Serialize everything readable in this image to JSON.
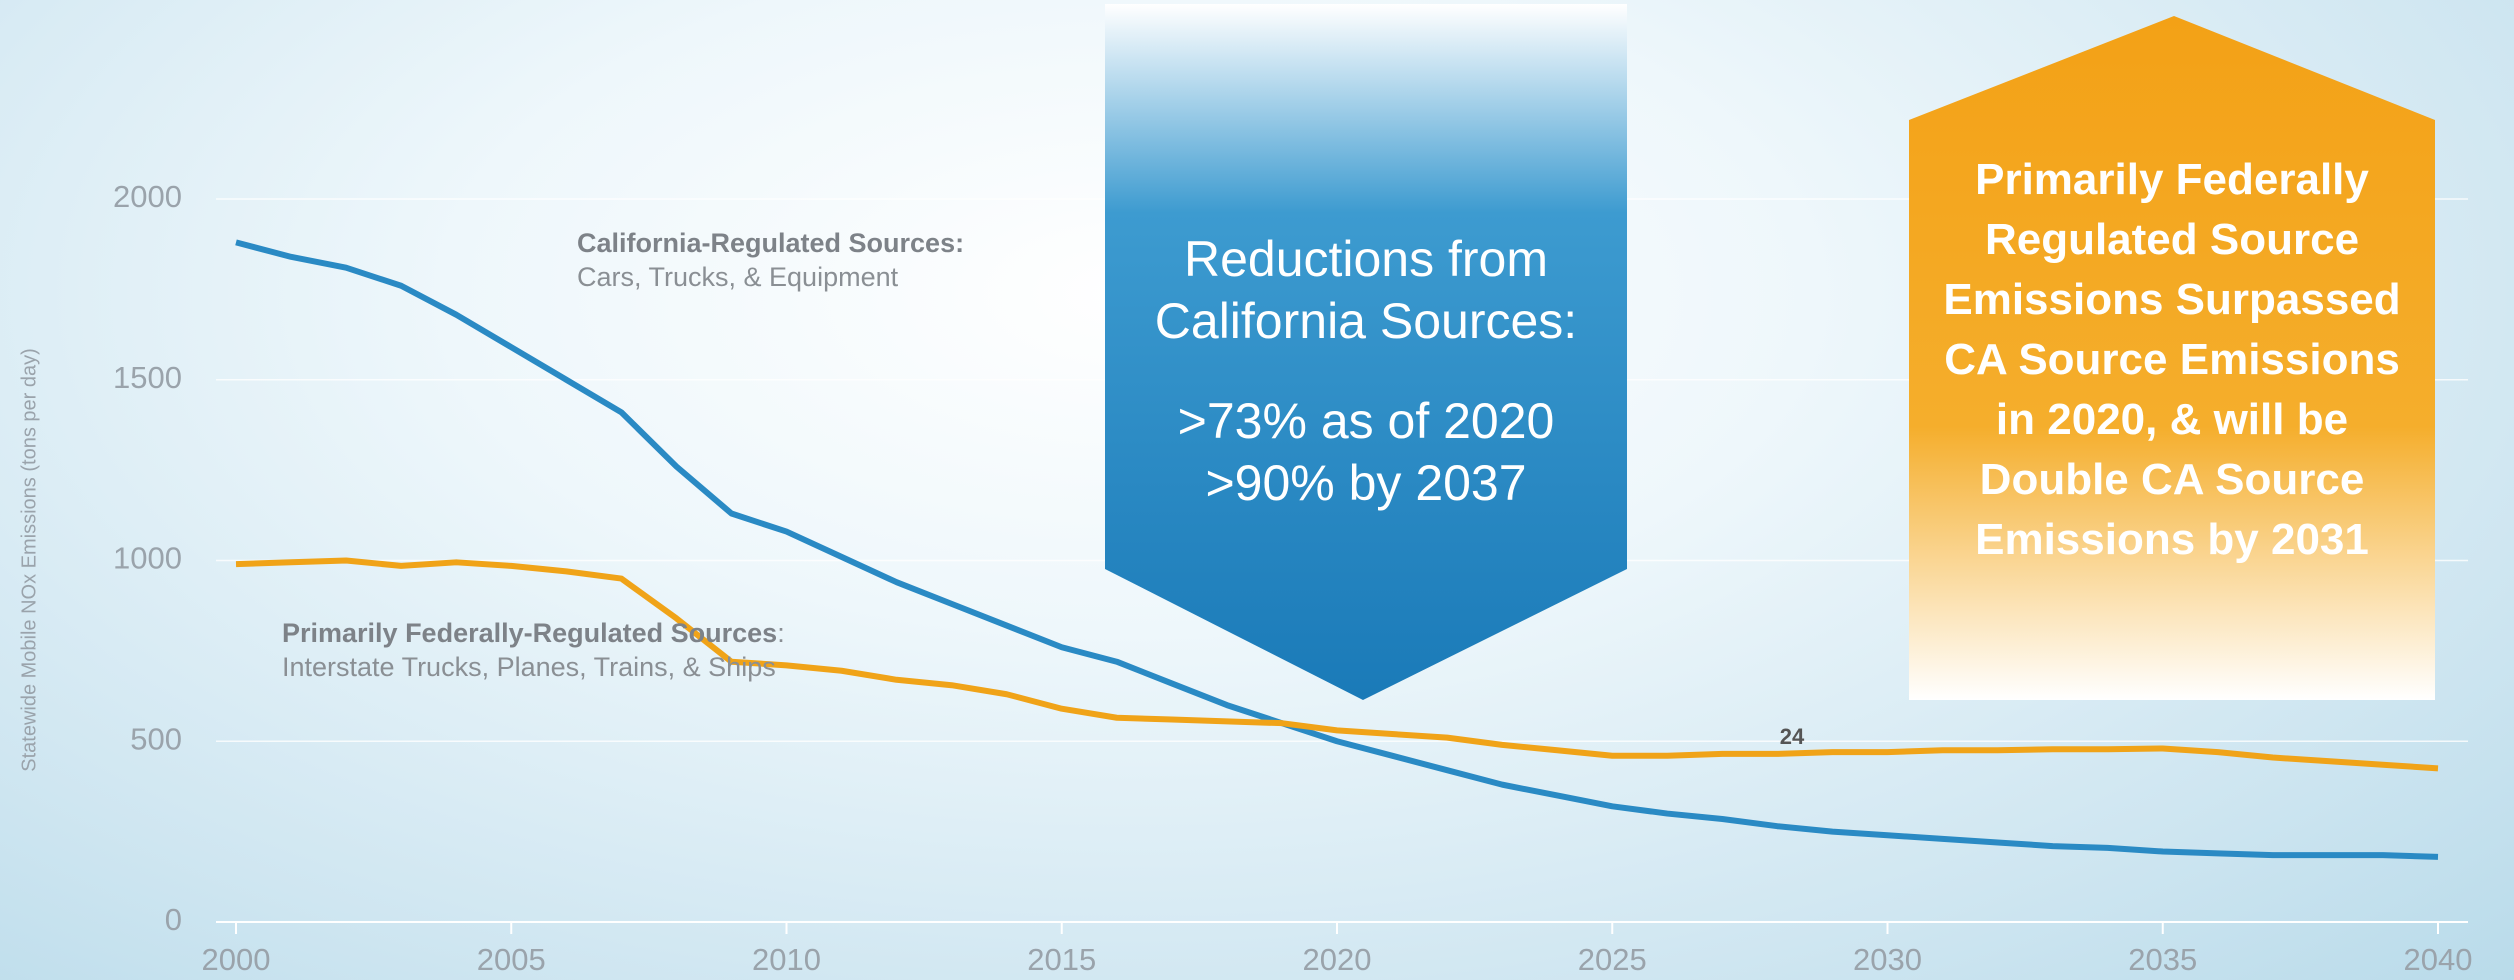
{
  "chart_data": {
    "type": "line",
    "y_label": "Statewide Mobile NOx Emissions (tons per day)",
    "x": [
      2000,
      2001,
      2002,
      2003,
      2004,
      2005,
      2006,
      2007,
      2008,
      2009,
      2010,
      2011,
      2012,
      2013,
      2014,
      2015,
      2016,
      2017,
      2018,
      2019,
      2020,
      2021,
      2022,
      2023,
      2024,
      2025,
      2026,
      2027,
      2028,
      2029,
      2030,
      2031,
      2032,
      2033,
      2034,
      2035,
      2036,
      2037,
      2038,
      2039,
      2040
    ],
    "series": [
      {
        "color": "#2a8ac4",
        "values": [
          1880,
          1840,
          1810,
          1760,
          1680,
          1590,
          1500,
          1410,
          1260,
          1130,
          1080,
          1010,
          940,
          880,
          820,
          760,
          720,
          660,
          600,
          550,
          500,
          460,
          420,
          380,
          350,
          320,
          300,
          285,
          265,
          250,
          240,
          230,
          220,
          210,
          205,
          195,
          190,
          185,
          185,
          185,
          180
        ]
      },
      {
        "color": "#f0a318",
        "values": [
          990,
          995,
          1000,
          985,
          995,
          985,
          970,
          950,
          840,
          720,
          710,
          695,
          670,
          655,
          630,
          590,
          565,
          560,
          555,
          550,
          530,
          520,
          510,
          490,
          475,
          460,
          460,
          465,
          465,
          470,
          470,
          475,
          475,
          478,
          478,
          480,
          470,
          455,
          445,
          435,
          425
        ]
      }
    ],
    "xlim": [
      2000,
      2040
    ],
    "xticks": [
      2000,
      2005,
      2010,
      2015,
      2020,
      2025,
      2030,
      2035,
      2040
    ],
    "ylim": [
      0,
      2000
    ],
    "yticks": [
      0,
      500,
      1000,
      1500,
      2000
    ],
    "grid": true,
    "annotations": {
      "ca_title": "California-Regulated Sources:",
      "ca_text": "Cars, Trucks, & Equipment",
      "fed_title": "Primarily Federally-Regulated Sources",
      "fed_text": ": Interstate Trucks, Planes, Trains, & Ships",
      "marker": "24",
      "blue_callout_title": "Reductions from California Sources:",
      "blue_callout_line1": ">73% as of 2020",
      "blue_callout_line2": ">90% by 2037",
      "orange_callout": "Primarily Federally Regulated Source Emissions Surpassed CA Source Emissions in 2020, & will be Double CA Source Emissions by 2031"
    }
  }
}
